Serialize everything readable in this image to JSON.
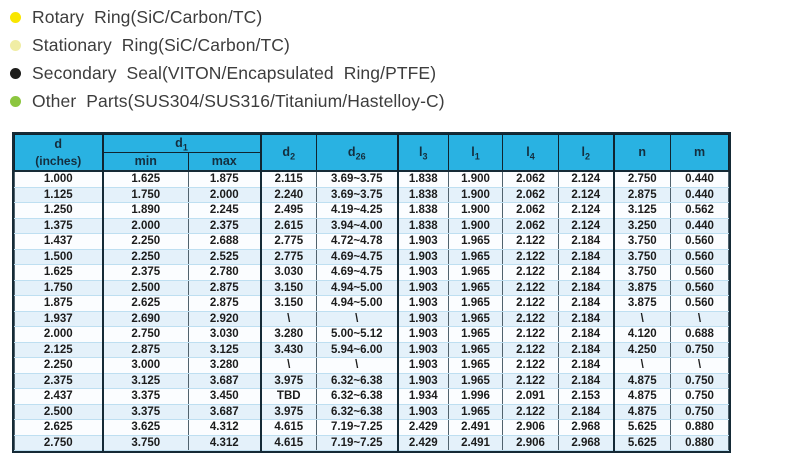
{
  "legend": {
    "items": [
      {
        "icon": "yellow-dot-icon",
        "color": "#f9e600",
        "label": "Rotary Ring(SiC/Carbon/TC)"
      },
      {
        "icon": "pale-yellow-dot-icon",
        "color": "#f0eda4",
        "label": "Stationary Ring(SiC/Carbon/TC)"
      },
      {
        "icon": "black-dot-icon",
        "color": "#1d1d1b",
        "label": "Secondary Seal(VITON/Encapsulated Ring/PTFE)"
      },
      {
        "icon": "green-dot-icon",
        "color": "#8cc63f",
        "label": "Other Parts(SUS304/SUS316/Titanium/Hastelloy-C)"
      }
    ]
  },
  "table": {
    "header_color": "#29b2e2",
    "header": {
      "d_base": "d",
      "d_unit": "(inches)",
      "d1": {
        "base": "d",
        "sub": "1"
      },
      "min": "min",
      "max": "max",
      "d2": {
        "base": "d",
        "sub": "2"
      },
      "d26": {
        "base": "d",
        "sub": "26"
      },
      "l3": {
        "base": "l",
        "sub": "3"
      },
      "l1": {
        "base": "l",
        "sub": "1"
      },
      "l4": {
        "base": "l",
        "sub": "4"
      },
      "l2": {
        "base": "l",
        "sub": "2"
      },
      "n": "n",
      "m": "m"
    },
    "rows": [
      [
        "1.000",
        "1.625",
        "1.875",
        "2.115",
        "3.69~3.75",
        "1.838",
        "1.900",
        "2.062",
        "2.124",
        "2.750",
        "0.440"
      ],
      [
        "1.125",
        "1.750",
        "2.000",
        "2.240",
        "3.69~3.75",
        "1.838",
        "1.900",
        "2.062",
        "2.124",
        "2.875",
        "0.440"
      ],
      [
        "1.250",
        "1.890",
        "2.245",
        "2.495",
        "4.19~4.25",
        "1.838",
        "1.900",
        "2.062",
        "2.124",
        "3.125",
        "0.562"
      ],
      [
        "1.375",
        "2.000",
        "2.375",
        "2.615",
        "3.94~4.00",
        "1.838",
        "1.900",
        "2.062",
        "2.124",
        "3.250",
        "0.440"
      ],
      [
        "1.437",
        "2.250",
        "2.688",
        "2.775",
        "4.72~4.78",
        "1.903",
        "1.965",
        "2.122",
        "2.184",
        "3.750",
        "0.560"
      ],
      [
        "1.500",
        "2.250",
        "2.525",
        "2.775",
        "4.69~4.75",
        "1.903",
        "1.965",
        "2.122",
        "2.184",
        "3.750",
        "0.560"
      ],
      [
        "1.625",
        "2.375",
        "2.780",
        "3.030",
        "4.69~4.75",
        "1.903",
        "1.965",
        "2.122",
        "2.184",
        "3.750",
        "0.560"
      ],
      [
        "1.750",
        "2.500",
        "2.875",
        "3.150",
        "4.94~5.00",
        "1.903",
        "1.965",
        "2.122",
        "2.184",
        "3.875",
        "0.560"
      ],
      [
        "1.875",
        "2.625",
        "2.875",
        "3.150",
        "4.94~5.00",
        "1.903",
        "1.965",
        "2.122",
        "2.184",
        "3.875",
        "0.560"
      ],
      [
        "1.937",
        "2.690",
        "2.920",
        "\\",
        "\\",
        "1.903",
        "1.965",
        "2.122",
        "2.184",
        "\\",
        "\\"
      ],
      [
        "2.000",
        "2.750",
        "3.030",
        "3.280",
        "5.00~5.12",
        "1.903",
        "1.965",
        "2.122",
        "2.184",
        "4.120",
        "0.688"
      ],
      [
        "2.125",
        "2.875",
        "3.125",
        "3.430",
        "5.94~6.00",
        "1.903",
        "1.965",
        "2.122",
        "2.184",
        "4.250",
        "0.750"
      ],
      [
        "2.250",
        "3.000",
        "3.280",
        "\\",
        "\\",
        "1.903",
        "1.965",
        "2.122",
        "2.184",
        "\\",
        "\\"
      ],
      [
        "2.375",
        "3.125",
        "3.687",
        "3.975",
        "6.32~6.38",
        "1.903",
        "1.965",
        "2.122",
        "2.184",
        "4.875",
        "0.750"
      ],
      [
        "2.437",
        "3.375",
        "3.450",
        "TBD",
        "6.32~6.38",
        "1.934",
        "1.996",
        "2.091",
        "2.153",
        "4.875",
        "0.750"
      ],
      [
        "2.500",
        "3.375",
        "3.687",
        "3.975",
        "6.32~6.38",
        "1.903",
        "1.965",
        "2.122",
        "2.184",
        "4.875",
        "0.750"
      ],
      [
        "2.625",
        "3.625",
        "4.312",
        "4.615",
        "7.19~7.25",
        "2.429",
        "2.491",
        "2.906",
        "2.968",
        "5.625",
        "0.880"
      ],
      [
        "2.750",
        "3.750",
        "4.312",
        "4.615",
        "7.19~7.25",
        "2.429",
        "2.491",
        "2.906",
        "2.968",
        "5.625",
        "0.880"
      ]
    ]
  }
}
